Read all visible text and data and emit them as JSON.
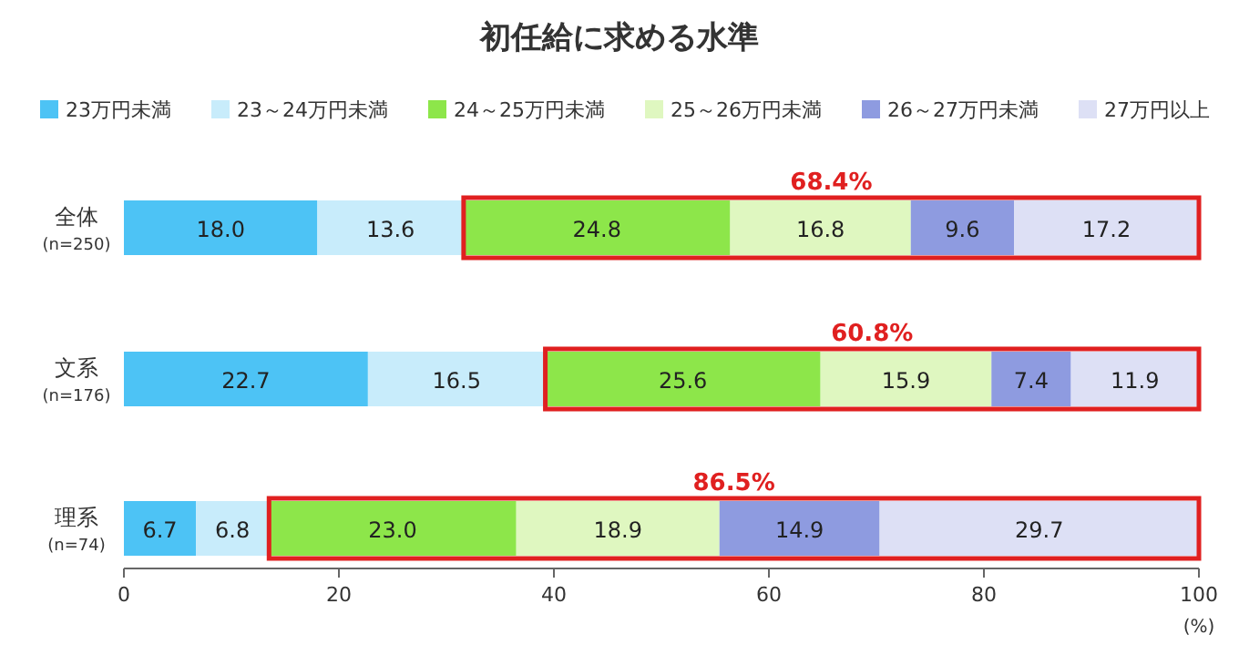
{
  "chart_data": {
    "type": "bar",
    "orientation": "horizontal",
    "stacked": true,
    "title": "初任給に求める水準",
    "categories": [
      "全体\n(n=250)",
      "文系\n(n=176)",
      "理系\n(n=74)"
    ],
    "series": [
      {
        "name": "23万円未満",
        "color": "#4dc3f5",
        "values": [
          18.0,
          22.7,
          6.7
        ],
        "value_labels": [
          "18.0",
          "22.7",
          "6.7"
        ]
      },
      {
        "name": "23～24万円未満",
        "color": "#c8ecfb",
        "values": [
          13.6,
          16.5,
          6.8
        ],
        "value_labels": [
          "13.6",
          "16.5",
          "6.8"
        ]
      },
      {
        "name": "24～25万円未満",
        "color": "#8de64a",
        "values": [
          24.8,
          25.6,
          23.0
        ],
        "value_labels": [
          "24.8",
          "25.6",
          "23.0"
        ]
      },
      {
        "name": "25～26万円未満",
        "color": "#dff7c0",
        "values": [
          16.8,
          15.9,
          18.9
        ],
        "value_labels": [
          "16.8",
          "15.9",
          "18.9"
        ]
      },
      {
        "name": "26～27万円未満",
        "color": "#8e9be0",
        "values": [
          9.6,
          7.4,
          14.9
        ],
        "value_labels": [
          "9.6",
          "7.4",
          "14.9"
        ]
      },
      {
        "name": "27万円以上",
        "color": "#dde0f5",
        "values": [
          17.2,
          11.9,
          29.7
        ],
        "value_labels": [
          "17.2",
          "11.9",
          "29.7"
        ]
      }
    ],
    "annotations": [
      "68.4%",
      "60.8%",
      "86.5%"
    ],
    "xlim": [
      0,
      100
    ],
    "xticks": [
      0,
      20,
      40,
      60,
      80,
      100
    ],
    "xlabel": "(%)",
    "legend": "top"
  }
}
